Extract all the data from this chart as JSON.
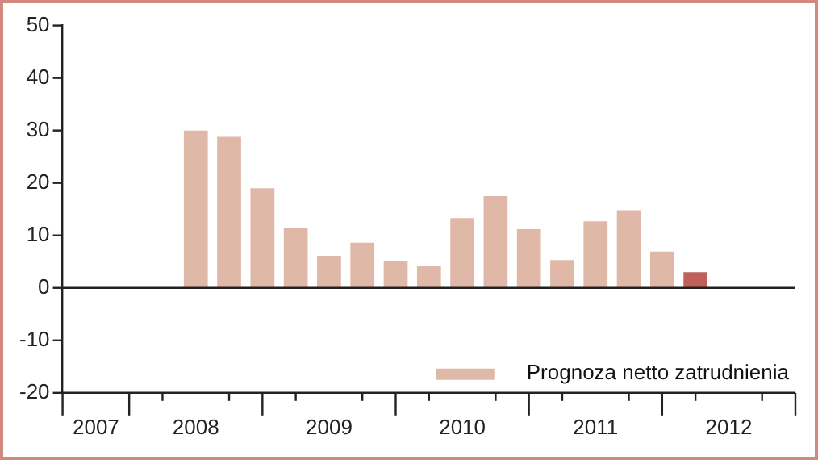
{
  "chart_data": {
    "type": "bar",
    "x": [
      2008,
      2008.25,
      2008.5,
      2008.75,
      2009,
      2009.25,
      2009.5,
      2009.75,
      2010,
      2010.25,
      2010.5,
      2010.75,
      2011,
      2011.25,
      2011.5,
      2011.75
    ],
    "series": [
      {
        "name": "Prognoza netto zatrudnienia",
        "color": "#e0b8a8",
        "values": [
          30,
          28.8,
          19,
          11.5,
          6.1,
          8.6,
          5.2,
          4.2,
          13.3,
          17.5,
          11.2,
          5.3,
          12.7,
          14.8,
          6.9,
          3.0
        ],
        "colors": [
          "#e0b8a8",
          "#e0b8a8",
          "#e0b8a8",
          "#e0b8a8",
          "#e0b8a8",
          "#e0b8a8",
          "#e0b8a8",
          "#e0b8a8",
          "#e0b8a8",
          "#e0b8a8",
          "#e0b8a8",
          "#e0b8a8",
          "#e0b8a8",
          "#e0b8a8",
          "#e0b8a8",
          "#c0605a"
        ]
      }
    ],
    "xlim": [
      2007,
      2012.5
    ],
    "xticks": [
      {
        "value": 2007,
        "label": null
      },
      {
        "value": 2007.25,
        "label": "2007"
      },
      {
        "value": 2007.5,
        "label": null
      },
      {
        "value": 2007.75,
        "label": null
      },
      {
        "value": 2008,
        "label": "2008"
      },
      {
        "value": 2008.25,
        "label": null
      },
      {
        "value": 2008.5,
        "label": null
      },
      {
        "value": 2008.75,
        "label": null
      },
      {
        "value": 2009,
        "label": "2009"
      },
      {
        "value": 2009.25,
        "label": null
      },
      {
        "value": 2009.5,
        "label": null
      },
      {
        "value": 2009.75,
        "label": null
      },
      {
        "value": 2010,
        "label": "2010"
      },
      {
        "value": 2010.25,
        "label": null
      },
      {
        "value": 2010.5,
        "label": null
      },
      {
        "value": 2010.75,
        "label": null
      },
      {
        "value": 2011,
        "label": "2011"
      },
      {
        "value": 2011.25,
        "label": null
      },
      {
        "value": 2011.5,
        "label": null
      },
      {
        "value": 2011.75,
        "label": null
      },
      {
        "value": 2012,
        "label": "2012"
      },
      {
        "value": 2012.25,
        "label": null
      },
      {
        "value": 2012.5,
        "label": null
      }
    ],
    "ref_lines": [
      {
        "axis": "y",
        "value": 0,
        "color": "#222222"
      }
    ],
    "ylim": [
      -20,
      50
    ],
    "yticks": [
      -20,
      -10,
      0,
      10,
      20,
      30,
      40,
      50
    ],
    "grid": false,
    "legend": "bottom right"
  }
}
